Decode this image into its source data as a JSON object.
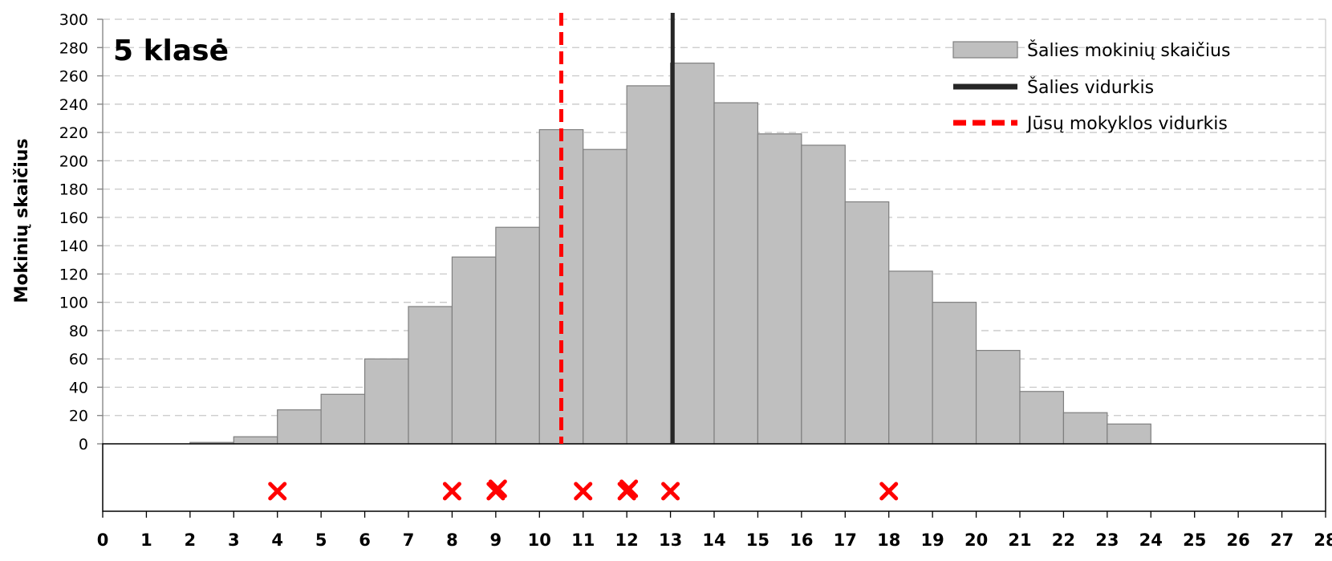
{
  "chart_data": {
    "type": "bar",
    "title": "5 klasė",
    "ylabel": "Mokinių skaičius",
    "xlabel": "",
    "ylim": [
      0,
      300
    ],
    "yticks": [
      0,
      20,
      40,
      60,
      80,
      100,
      120,
      140,
      160,
      180,
      200,
      220,
      240,
      260,
      280,
      300
    ],
    "xlim": [
      0,
      28
    ],
    "xticks": [
      0,
      1,
      2,
      3,
      4,
      5,
      6,
      7,
      8,
      9,
      10,
      11,
      12,
      13,
      14,
      15,
      16,
      17,
      18,
      19,
      20,
      21,
      22,
      23,
      24,
      25,
      26,
      27,
      28
    ],
    "grid": "horizontal dashed",
    "legend_position": "top-right",
    "series": [
      {
        "name": "Šalies mokinių skaičius",
        "kind": "histogram",
        "color": "#bfbfbf",
        "bins": [
          {
            "x0": 0,
            "x1": 1,
            "value": 0
          },
          {
            "x0": 1,
            "x1": 2,
            "value": 0
          },
          {
            "x0": 2,
            "x1": 3,
            "value": 1
          },
          {
            "x0": 3,
            "x1": 4,
            "value": 5
          },
          {
            "x0": 4,
            "x1": 5,
            "value": 24
          },
          {
            "x0": 5,
            "x1": 6,
            "value": 35
          },
          {
            "x0": 6,
            "x1": 7,
            "value": 60
          },
          {
            "x0": 7,
            "x1": 8,
            "value": 97
          },
          {
            "x0": 8,
            "x1": 9,
            "value": 132
          },
          {
            "x0": 9,
            "x1": 10,
            "value": 153
          },
          {
            "x0": 10,
            "x1": 11,
            "value": 222
          },
          {
            "x0": 11,
            "x1": 12,
            "value": 208
          },
          {
            "x0": 12,
            "x1": 13,
            "value": 253
          },
          {
            "x0": 13,
            "x1": 14,
            "value": 269
          },
          {
            "x0": 14,
            "x1": 15,
            "value": 241
          },
          {
            "x0": 15,
            "x1": 16,
            "value": 219
          },
          {
            "x0": 16,
            "x1": 17,
            "value": 211
          },
          {
            "x0": 17,
            "x1": 18,
            "value": 171
          },
          {
            "x0": 18,
            "x1": 19,
            "value": 122
          },
          {
            "x0": 19,
            "x1": 20,
            "value": 100
          },
          {
            "x0": 20,
            "x1": 21,
            "value": 66
          },
          {
            "x0": 21,
            "x1": 22,
            "value": 37
          },
          {
            "x0": 22,
            "x1": 23,
            "value": 22
          },
          {
            "x0": 23,
            "x1": 24,
            "value": 14
          }
        ]
      },
      {
        "name": "Šalies vidurkis",
        "kind": "vline",
        "x": 13.05,
        "color": "#262626",
        "dash": "solid"
      },
      {
        "name": "Jūsų mokyklos vidurkis",
        "kind": "vline",
        "x": 10.5,
        "color": "#ff0000",
        "dash": "dashed"
      }
    ],
    "student_scores": [
      4,
      8,
      9,
      9,
      11,
      12,
      12,
      13,
      18
    ],
    "marker_color": "#ff0000"
  }
}
